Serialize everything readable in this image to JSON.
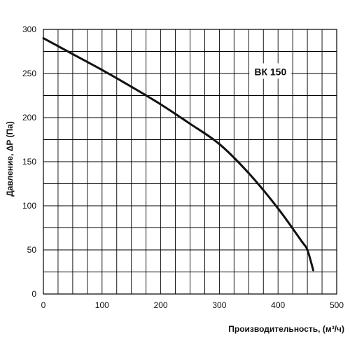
{
  "chart_data": {
    "type": "line",
    "title": "",
    "xlabel": "Производительность, (м³/ч)",
    "ylabel": "Давление, ΔP (Па)",
    "xlim": [
      0,
      500
    ],
    "ylim": [
      0,
      300
    ],
    "x_ticks": [
      0,
      100,
      200,
      300,
      400,
      500
    ],
    "y_ticks": [
      0,
      50,
      100,
      150,
      200,
      250,
      300
    ],
    "grid": true,
    "grid_x_step": 25,
    "grid_y_step": 25,
    "series": [
      {
        "name": "ВК 150",
        "color": "#111111",
        "x": [
          0,
          50,
          100,
          150,
          200,
          250,
          300,
          350,
          400,
          440,
          450,
          460
        ],
        "y": [
          290,
          272,
          254,
          235,
          215,
          193,
          170,
          137,
          97,
          60,
          50,
          27
        ]
      }
    ],
    "annotations": [
      {
        "text": "ВК 150",
        "x": 387,
        "y": 252
      }
    ]
  }
}
